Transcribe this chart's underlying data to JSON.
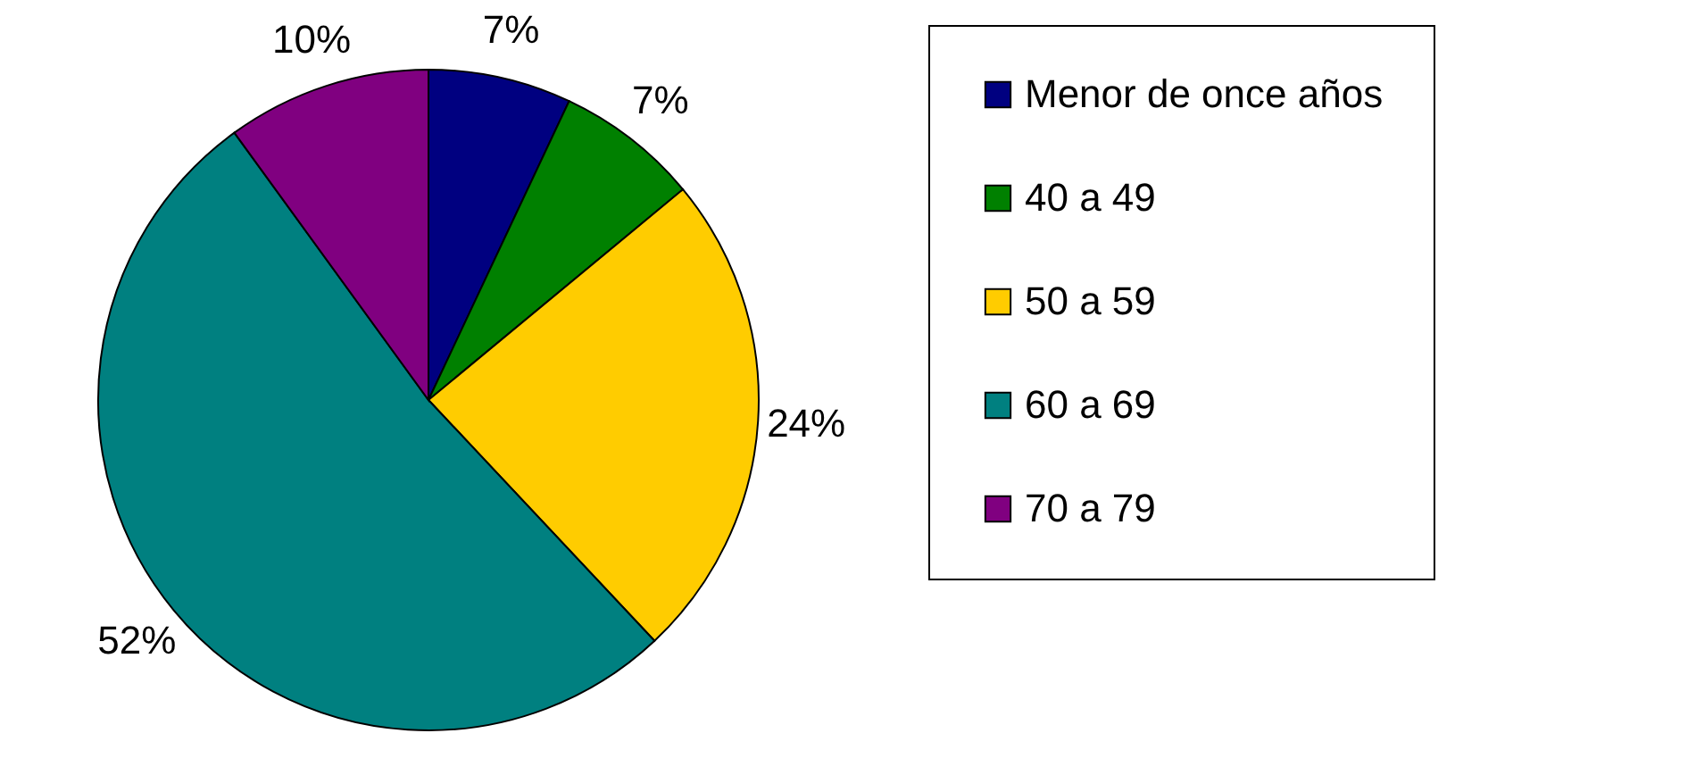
{
  "chart_data": {
    "type": "pie",
    "categories": [
      "Menor de once años",
      "40 a 49",
      "50 a 59",
      "60 a 69",
      "70 a 79"
    ],
    "values": [
      7,
      7,
      24,
      52,
      10
    ],
    "colors": [
      "#000080",
      "#008000",
      "#ffcc00",
      "#008080",
      "#800080"
    ],
    "value_labels": [
      "7%",
      "7%",
      "24%",
      "52%",
      "10%"
    ],
    "legend": "right"
  }
}
